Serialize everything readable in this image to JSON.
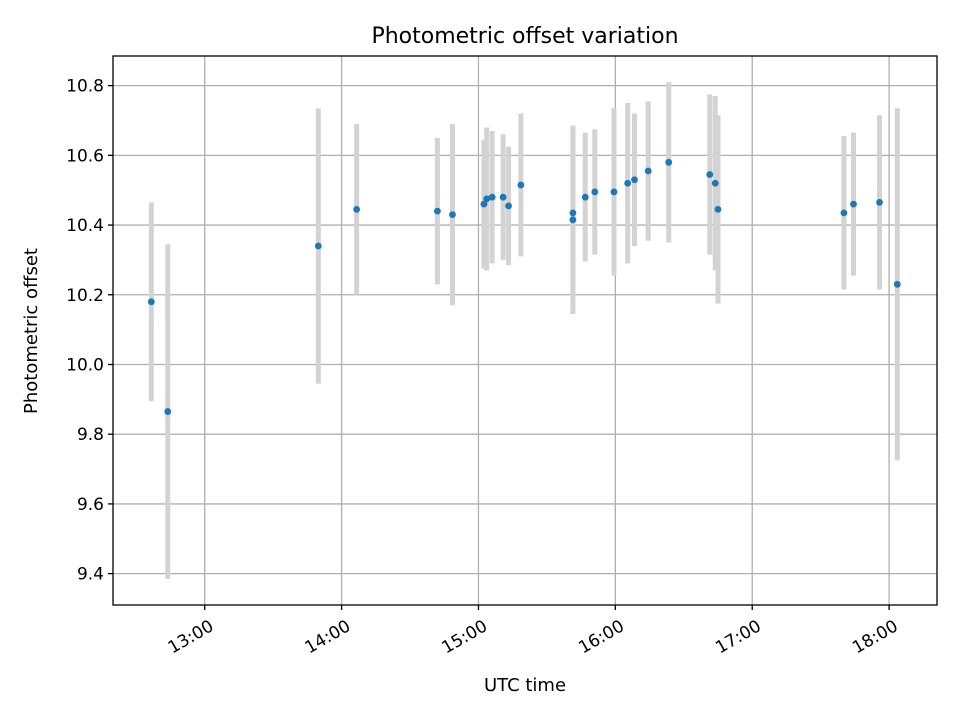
{
  "chart_data": {
    "type": "scatter",
    "title": "Photometric offset variation",
    "xlabel": "UTC time",
    "ylabel": "Photometric offset",
    "x_unit": "hours UTC",
    "xlim": [
      12.33,
      18.35
    ],
    "ylim": [
      9.31,
      10.885
    ],
    "grid": true,
    "x_ticks": [
      {
        "value": 13,
        "label": "13:00"
      },
      {
        "value": 14,
        "label": "14:00"
      },
      {
        "value": 15,
        "label": "15:00"
      },
      {
        "value": 16,
        "label": "16:00"
      },
      {
        "value": 17,
        "label": "17:00"
      },
      {
        "value": 18,
        "label": "18:00"
      }
    ],
    "y_ticks": [
      {
        "value": 9.4,
        "label": "9.4"
      },
      {
        "value": 9.6,
        "label": "9.6"
      },
      {
        "value": 9.8,
        "label": "9.8"
      },
      {
        "value": 10.0,
        "label": "10.0"
      },
      {
        "value": 10.2,
        "label": "10.2"
      },
      {
        "value": 10.4,
        "label": "10.4"
      },
      {
        "value": 10.6,
        "label": "10.6"
      },
      {
        "value": 10.8,
        "label": "10.8"
      }
    ],
    "point_color": "#1f77b4",
    "errorbar_color": "#d3d3d3",
    "points": [
      {
        "x": 12.61,
        "y": 10.18,
        "yerr": 0.285
      },
      {
        "x": 12.73,
        "y": 9.865,
        "yerr": 0.48
      },
      {
        "x": 13.83,
        "y": 10.34,
        "yerr": 0.395
      },
      {
        "x": 14.11,
        "y": 10.445,
        "yerr": 0.245
      },
      {
        "x": 14.7,
        "y": 10.44,
        "yerr": 0.21
      },
      {
        "x": 14.81,
        "y": 10.43,
        "yerr": 0.26
      },
      {
        "x": 15.04,
        "y": 10.46,
        "yerr": 0.185
      },
      {
        "x": 15.06,
        "y": 10.475,
        "yerr": 0.205
      },
      {
        "x": 15.1,
        "y": 10.48,
        "yerr": 0.19
      },
      {
        "x": 15.18,
        "y": 10.48,
        "yerr": 0.18
      },
      {
        "x": 15.22,
        "y": 10.455,
        "yerr": 0.17
      },
      {
        "x": 15.31,
        "y": 10.515,
        "yerr": 0.205
      },
      {
        "x": 15.69,
        "y": 10.435,
        "yerr": 0.25
      },
      {
        "x": 15.69,
        "y": 10.415,
        "yerr": 0.27
      },
      {
        "x": 15.78,
        "y": 10.48,
        "yerr": 0.185
      },
      {
        "x": 15.85,
        "y": 10.495,
        "yerr": 0.18
      },
      {
        "x": 15.99,
        "y": 10.495,
        "yerr": 0.24
      },
      {
        "x": 16.09,
        "y": 10.52,
        "yerr": 0.23
      },
      {
        "x": 16.14,
        "y": 10.53,
        "yerr": 0.19
      },
      {
        "x": 16.24,
        "y": 10.555,
        "yerr": 0.2
      },
      {
        "x": 16.39,
        "y": 10.58,
        "yerr": 0.23
      },
      {
        "x": 16.69,
        "y": 10.545,
        "yerr": 0.23
      },
      {
        "x": 16.73,
        "y": 10.52,
        "yerr": 0.25
      },
      {
        "x": 16.75,
        "y": 10.445,
        "yerr": 0.27
      },
      {
        "x": 17.67,
        "y": 10.435,
        "yerr": 0.22
      },
      {
        "x": 17.74,
        "y": 10.46,
        "yerr": 0.205
      },
      {
        "x": 17.93,
        "y": 10.465,
        "yerr": 0.25
      },
      {
        "x": 18.06,
        "y": 10.23,
        "yerr": 0.505
      }
    ]
  }
}
